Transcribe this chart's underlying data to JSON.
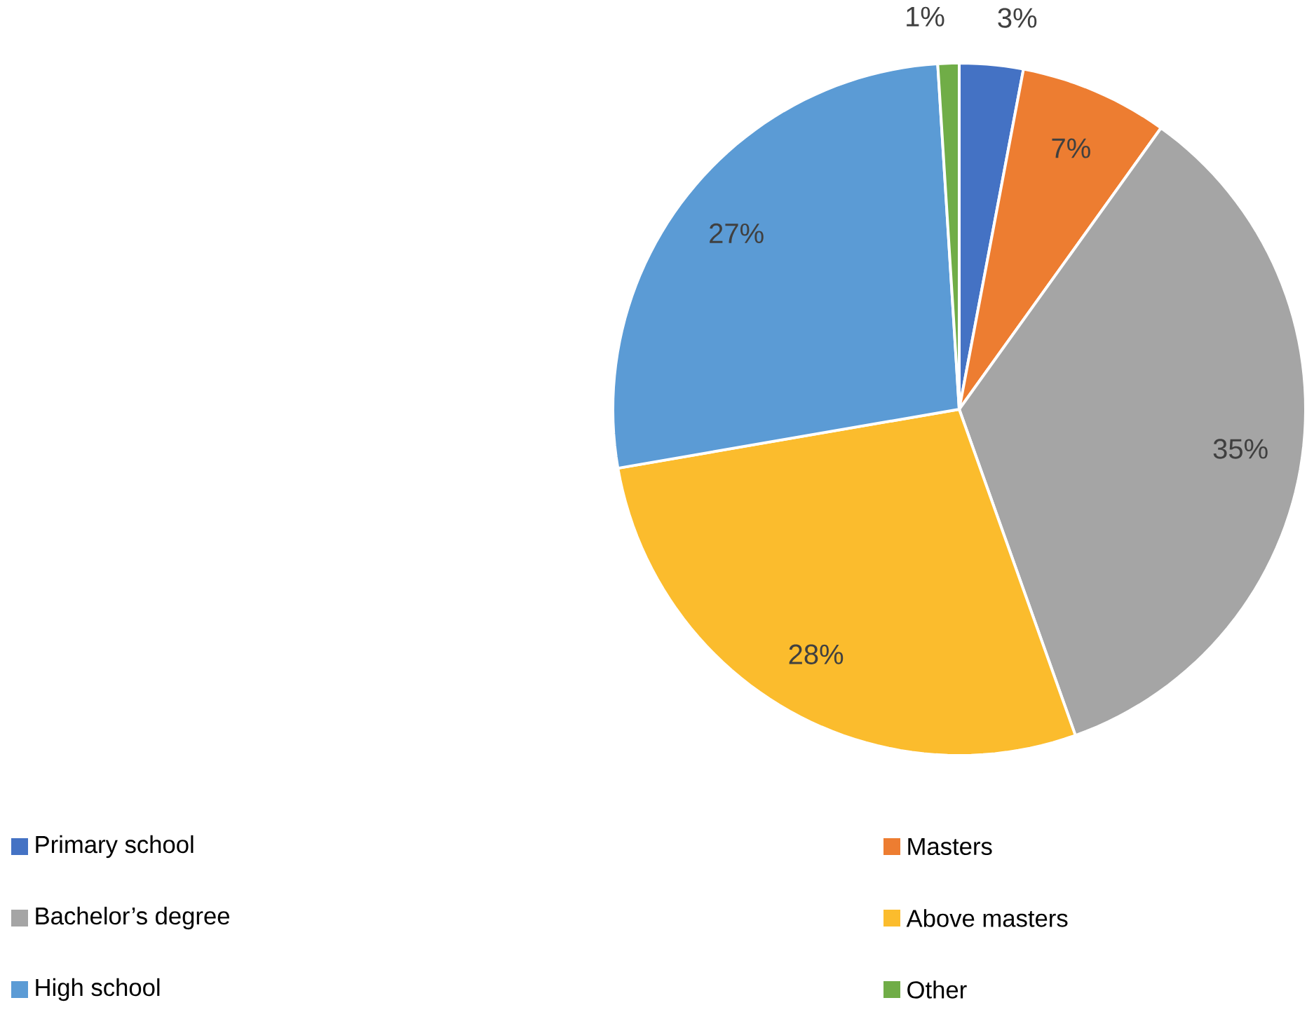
{
  "chart_data": {
    "type": "pie",
    "categories": [
      "Primary school",
      "Masters",
      "Bachelor’s degree",
      "Above masters",
      "High school",
      "Other"
    ],
    "values": [
      3,
      7,
      35,
      28,
      27,
      1
    ],
    "colors": [
      "#4472c4",
      "#ed7d31",
      "#a5a5a5",
      "#fbbc2d",
      "#5b9bd5",
      "#70ad47"
    ],
    "value_labels": [
      "3%",
      "7%",
      "35%",
      "28%",
      "27%",
      "1%"
    ],
    "legend": "bottom"
  }
}
